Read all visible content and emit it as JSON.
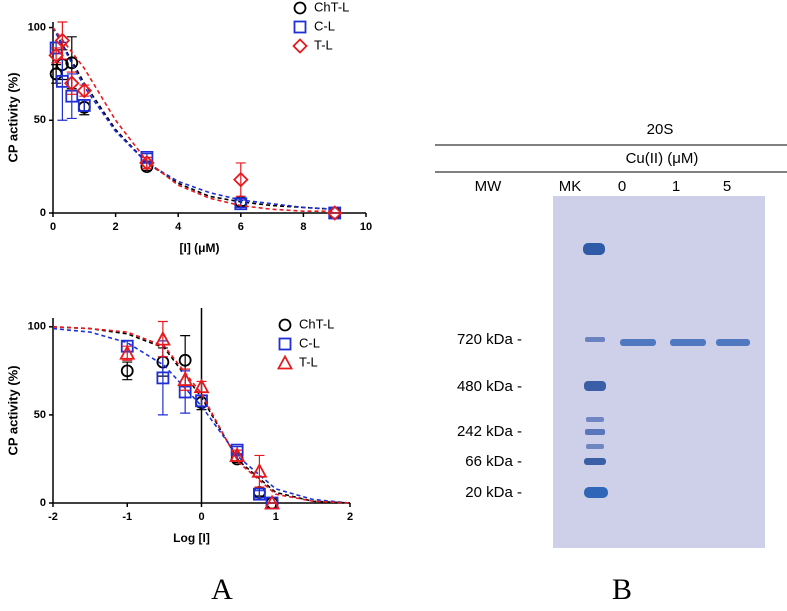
{
  "chart_data": [
    {
      "type": "scatter",
      "xlabel": "[I] (μM)",
      "ylabel": "CP activity (%)",
      "x": [
        0.1,
        0.3,
        0.6,
        1,
        3,
        6,
        9
      ],
      "xlim": [
        0,
        10
      ],
      "xticks": [
        0,
        2,
        4,
        6,
        8,
        10
      ],
      "ylim": [
        0,
        103
      ],
      "yticks": [
        0,
        50,
        100
      ],
      "legend": "top-right",
      "fit_x": [
        0,
        1,
        2,
        3,
        4,
        5,
        6,
        7,
        8,
        9
      ],
      "series": [
        {
          "name": "ChT-L",
          "color": "#000000",
          "marker": "circle",
          "values": [
            75,
            80,
            81,
            57,
            25,
            6,
            0
          ],
          "errors": [
            5,
            8,
            14,
            4,
            2,
            2,
            0
          ],
          "fit_values": [
            100,
            70,
            45,
            27,
            16,
            9,
            6,
            4,
            3,
            2
          ]
        },
        {
          "name": "C-L",
          "color": "#1f2fd6",
          "marker": "square",
          "values": [
            89,
            71,
            63,
            58,
            30,
            5,
            0
          ],
          "errors": [
            3,
            21,
            12,
            3,
            2,
            2,
            0
          ],
          "fit_values": [
            100,
            68,
            44,
            27,
            17,
            11,
            7,
            5,
            3,
            2
          ]
        },
        {
          "name": "T-L",
          "color": "#e8191e",
          "marker": "diamond",
          "values": [
            85,
            93,
            70,
            66,
            27,
            18,
            0
          ],
          "errors": [
            4,
            10,
            6,
            3,
            3,
            9,
            0
          ],
          "fit_values": [
            100,
            78,
            50,
            28,
            15,
            8,
            4,
            2,
            1,
            1
          ]
        }
      ]
    },
    {
      "type": "scatter",
      "xlabel": "Log [I]",
      "ylabel": "CP activity (%)",
      "x": [
        -1,
        -0.52,
        -0.22,
        0,
        0.48,
        0.78,
        0.95
      ],
      "xlim": [
        -2,
        2
      ],
      "xticks": [
        -2,
        -1,
        0,
        1,
        2
      ],
      "ylim": [
        0,
        105
      ],
      "yticks": [
        0,
        50,
        100
      ],
      "legend": "top-right",
      "fit_x": [
        -2,
        -1.5,
        -1,
        -0.5,
        0,
        0.5,
        1,
        1.5,
        2
      ],
      "series": [
        {
          "name": "ChT-L",
          "color": "#000000",
          "marker": "circle",
          "values": [
            75,
            80,
            81,
            57,
            25,
            6,
            0
          ],
          "errors": [
            5,
            8,
            14,
            4,
            2,
            2,
            0
          ],
          "fit_values": [
            100,
            99,
            96,
            88,
            60,
            24,
            6,
            1,
            0
          ]
        },
        {
          "name": "C-L",
          "color": "#1f2fd6",
          "marker": "square",
          "values": [
            89,
            71,
            63,
            58,
            30,
            5,
            0
          ],
          "errors": [
            3,
            21,
            12,
            3,
            2,
            2,
            0
          ],
          "fit_values": [
            99,
            97,
            91,
            78,
            55,
            26,
            8,
            2,
            0
          ]
        },
        {
          "name": "T-L",
          "color": "#e8191e",
          "marker": "triangle",
          "values": [
            85,
            93,
            70,
            66,
            27,
            18,
            0
          ],
          "errors": [
            4,
            10,
            6,
            3,
            3,
            9,
            0
          ],
          "fit_values": [
            100,
            99,
            97,
            89,
            62,
            23,
            5,
            1,
            0
          ]
        }
      ]
    }
  ],
  "panels": {
    "a": "A",
    "b": "B"
  },
  "gel": {
    "title": "20S",
    "subtitle": "Cu(II) (μM)",
    "lanes": [
      "MW",
      "MK",
      "0",
      "1",
      "5"
    ],
    "markers": [
      "720 kDa -",
      "480 kDa -",
      "242 kDa -",
      "66 kDa -",
      "20 kDa -"
    ]
  }
}
